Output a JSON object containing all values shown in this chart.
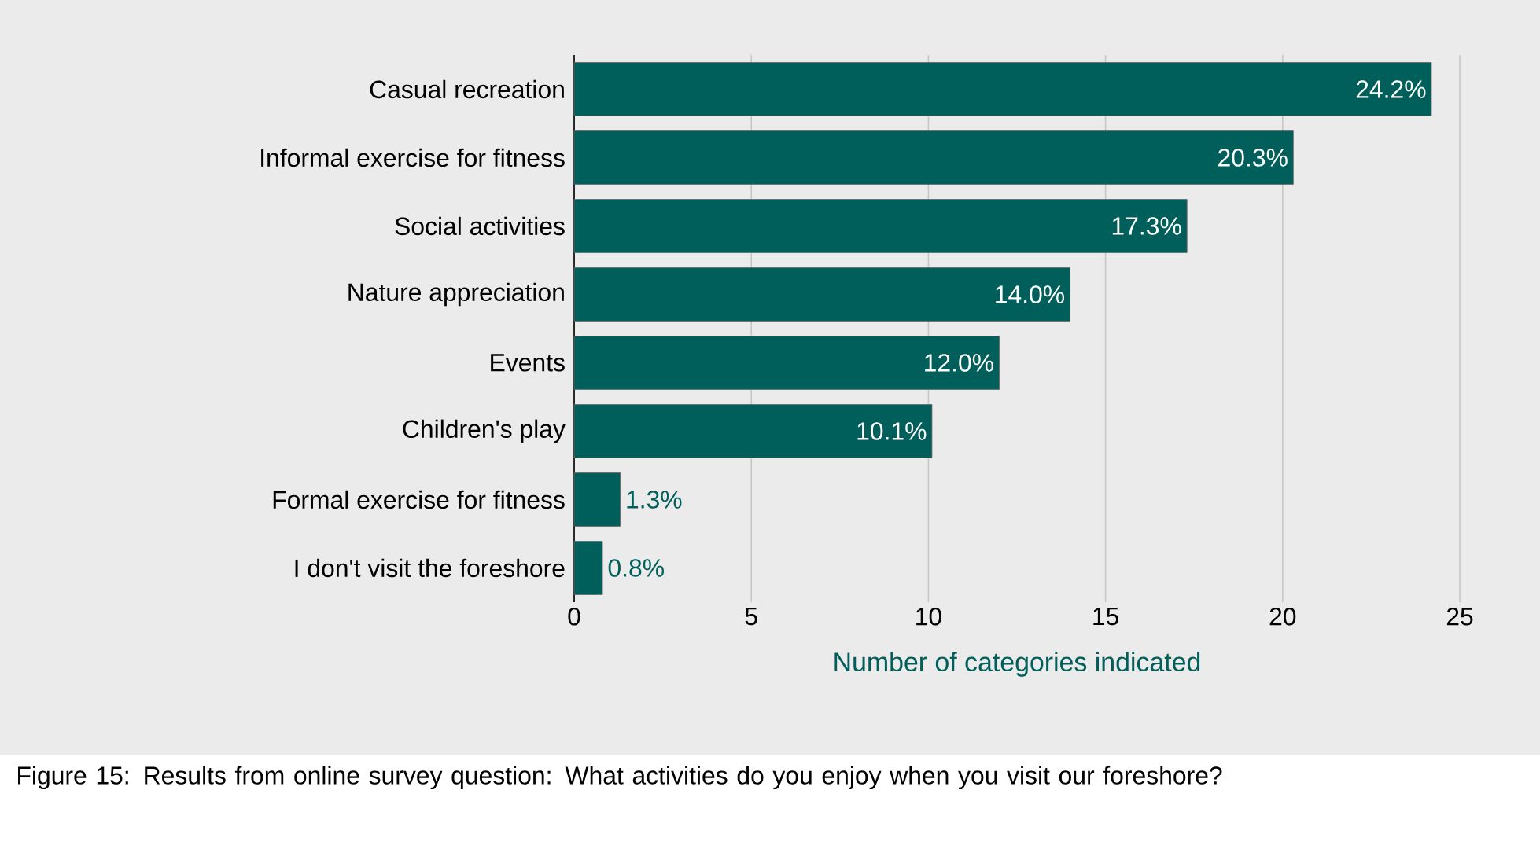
{
  "chart_data": {
    "type": "bar",
    "orientation": "horizontal",
    "xlabel": "Number of categories indicated",
    "categories": [
      "Casual recreation",
      "Informal exercise for fitness",
      "Social activities",
      "Nature appreciation",
      "Events",
      "Children's play",
      "Formal exercise for fitness",
      "I don't visit the foreshore"
    ],
    "values": [
      24.2,
      20.3,
      17.3,
      14.0,
      12.0,
      10.1,
      1.3,
      0.8
    ],
    "value_labels": [
      "24.2%",
      "20.3%",
      "17.3%",
      "14.0%",
      "12.0%",
      "10.1%",
      "1.3%",
      "0.8%"
    ],
    "color": "#005f5a",
    "xlim": [
      0,
      25
    ],
    "xticks": [
      0,
      5,
      10,
      15,
      20,
      25
    ],
    "grid": "x",
    "annotations": [
      "Figure 15: Results from online survey question: What activities do you enjoy when you visit our foreshore?"
    ]
  }
}
